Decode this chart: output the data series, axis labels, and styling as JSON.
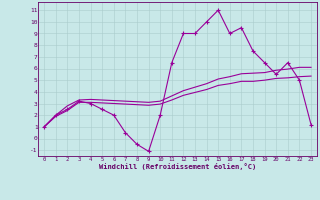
{
  "xlabel": "Windchill (Refroidissement éolien,°C)",
  "x": [
    0,
    1,
    2,
    3,
    4,
    5,
    6,
    7,
    8,
    9,
    10,
    11,
    12,
    13,
    14,
    15,
    16,
    17,
    18,
    19,
    20,
    21,
    22,
    23
  ],
  "line1": [
    1.0,
    2.0,
    2.5,
    3.2,
    3.0,
    2.5,
    2.0,
    0.5,
    -0.5,
    -1.1,
    2.0,
    6.5,
    9.0,
    9.0,
    10.0,
    11.0,
    9.0,
    9.5,
    7.5,
    6.5,
    5.5,
    6.5,
    5.0,
    1.2
  ],
  "line2": [
    1.0,
    2.0,
    2.8,
    3.3,
    3.35,
    3.3,
    3.25,
    3.2,
    3.15,
    3.1,
    3.2,
    3.65,
    4.1,
    4.4,
    4.7,
    5.1,
    5.3,
    5.55,
    5.6,
    5.65,
    5.85,
    5.95,
    6.1,
    6.1
  ],
  "line3": [
    1.0,
    1.9,
    2.4,
    3.1,
    3.1,
    3.05,
    3.0,
    2.95,
    2.9,
    2.85,
    2.95,
    3.3,
    3.7,
    3.95,
    4.2,
    4.55,
    4.7,
    4.9,
    4.9,
    5.0,
    5.15,
    5.2,
    5.3,
    5.35
  ],
  "color": "#990099",
  "bg_color": "#c8e8e8",
  "grid_color": "#aacccc",
  "ylim": [
    -1.5,
    11.7
  ],
  "yticks": [
    -1,
    0,
    1,
    2,
    3,
    4,
    5,
    6,
    7,
    8,
    9,
    10,
    11
  ],
  "xticks": [
    0,
    1,
    2,
    3,
    4,
    5,
    6,
    7,
    8,
    9,
    10,
    11,
    12,
    13,
    14,
    15,
    16,
    17,
    18,
    19,
    20,
    21,
    22,
    23
  ]
}
